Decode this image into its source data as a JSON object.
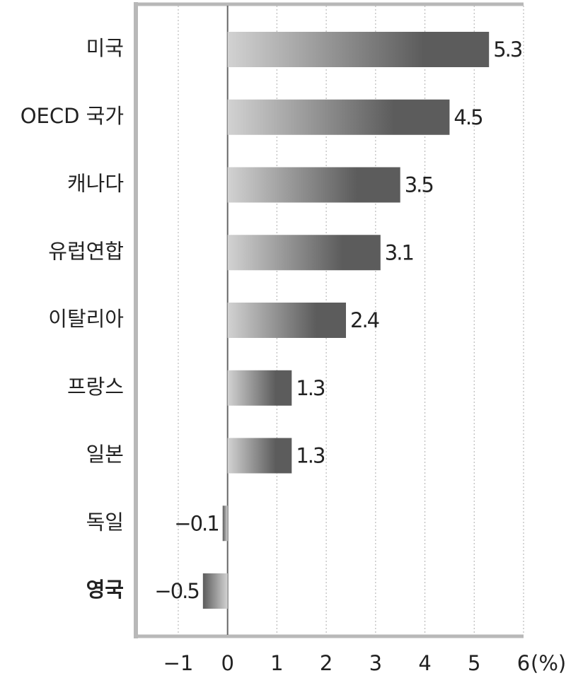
{
  "chart_data": {
    "type": "bar",
    "orientation": "horizontal",
    "categories": [
      "미국",
      "OECD 국가",
      "캐나다",
      "유럽연합",
      "이탈리아",
      "프랑스",
      "일본",
      "독일",
      "영국"
    ],
    "values": [
      5.3,
      4.5,
      3.5,
      3.1,
      2.4,
      1.3,
      1.3,
      -0.1,
      -0.5
    ],
    "value_labels": [
      "5.3",
      "4.5",
      "3.5",
      "3.1",
      "2.4",
      "1.3",
      "1.3",
      "−0.1",
      "−0.5"
    ],
    "emphasis": [
      false,
      false,
      false,
      false,
      false,
      false,
      false,
      false,
      true
    ],
    "color_start": "#d2d2d2",
    "color_end": "#5c5c5c",
    "xlim": [
      -1.86,
      6
    ],
    "xticks": [
      {
        "value": -1,
        "label": "−1"
      },
      0,
      1,
      2,
      3,
      4,
      5,
      6
    ],
    "x_unit": "(%)",
    "grid": true
  }
}
